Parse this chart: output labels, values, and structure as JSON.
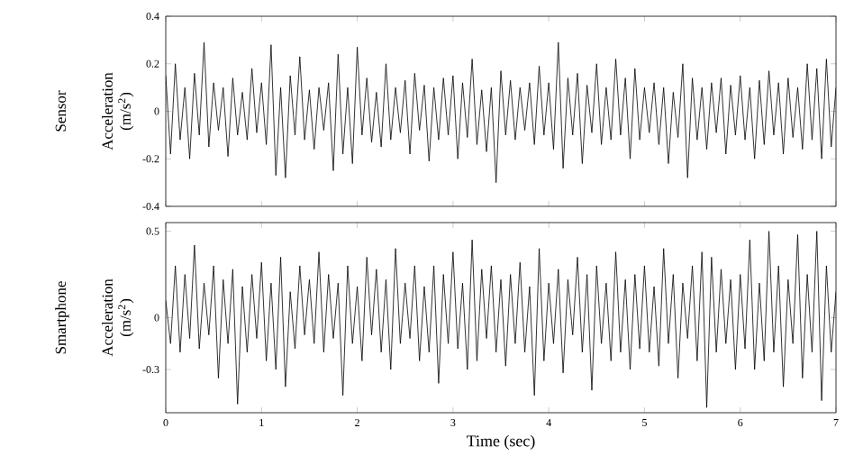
{
  "chart_data": [
    {
      "type": "line",
      "title": "Sensor",
      "ylabel": "Acceleration (m/s$^{2}$)",
      "xlim": [
        0,
        7
      ],
      "xticks": [
        0,
        1,
        2,
        3,
        4,
        5,
        6,
        7
      ],
      "ylim": [
        -0.4,
        0.4
      ],
      "yticks": [
        -0.4,
        -0.2,
        0,
        0.2,
        0.4
      ],
      "tick_labels": "y",
      "x": [
        0,
        0.05,
        0.1,
        0.15,
        0.2,
        0.25,
        0.3,
        0.35,
        0.4,
        0.45,
        0.5,
        0.55,
        0.6,
        0.65,
        0.7,
        0.75,
        0.8,
        0.85,
        0.9,
        0.95,
        1,
        1.05,
        1.1,
        1.15,
        1.2,
        1.25,
        1.3,
        1.35,
        1.4,
        1.45,
        1.5,
        1.55,
        1.6,
        1.65,
        1.7,
        1.75,
        1.8,
        1.85,
        1.9,
        1.95,
        2,
        2.05,
        2.1,
        2.15,
        2.2,
        2.25,
        2.3,
        2.35,
        2.4,
        2.45,
        2.5,
        2.55,
        2.6,
        2.65,
        2.7,
        2.75,
        2.8,
        2.85,
        2.9,
        2.95,
        3,
        3.05,
        3.1,
        3.15,
        3.2,
        3.25,
        3.3,
        3.35,
        3.4,
        3.45,
        3.5,
        3.55,
        3.6,
        3.65,
        3.7,
        3.75,
        3.8,
        3.85,
        3.9,
        3.95,
        4,
        4.05,
        4.1,
        4.15,
        4.2,
        4.25,
        4.3,
        4.35,
        4.4,
        4.45,
        4.5,
        4.55,
        4.6,
        4.65,
        4.7,
        4.75,
        4.8,
        4.85,
        4.9,
        4.95,
        5,
        5.05,
        5.1,
        5.15,
        5.2,
        5.25,
        5.3,
        5.35,
        5.4,
        5.45,
        5.5,
        5.55,
        5.6,
        5.65,
        5.7,
        5.75,
        5.8,
        5.85,
        5.9,
        5.95,
        6,
        6.05,
        6.1,
        6.15,
        6.2,
        6.25,
        6.3,
        6.35,
        6.4,
        6.45,
        6.5,
        6.55,
        6.6,
        6.65,
        6.7,
        6.75,
        6.8,
        6.85,
        6.9,
        6.95,
        7
      ],
      "series": [
        {
          "color": "#000000",
          "values": [
            0.15,
            -0.18,
            0.2,
            -0.12,
            0.1,
            -0.2,
            0.16,
            -0.1,
            0.29,
            -0.15,
            0.12,
            -0.08,
            0.1,
            -0.19,
            0.14,
            -0.1,
            0.08,
            -0.12,
            0.18,
            -0.09,
            0.12,
            -0.14,
            0.28,
            -0.27,
            0.1,
            -0.28,
            0.15,
            -0.1,
            0.23,
            -0.12,
            0.09,
            -0.16,
            0.1,
            -0.08,
            0.12,
            -0.25,
            0.24,
            -0.18,
            0.1,
            -0.22,
            0.27,
            -0.1,
            0.14,
            -0.13,
            0.08,
            -0.15,
            0.2,
            -0.12,
            0.1,
            -0.09,
            0.13,
            -0.18,
            0.16,
            -0.08,
            0.11,
            -0.21,
            0.1,
            -0.12,
            0.14,
            -0.1,
            0.15,
            -0.2,
            0.12,
            -0.11,
            0.22,
            -0.14,
            0.09,
            -0.17,
            0.1,
            -0.3,
            0.17,
            -0.1,
            0.13,
            -0.12,
            0.1,
            -0.08,
            0.12,
            -0.14,
            0.19,
            -0.1,
            0.12,
            -0.16,
            0.29,
            -0.24,
            0.14,
            -0.1,
            0.16,
            -0.22,
            0.11,
            -0.09,
            0.2,
            -0.14,
            0.1,
            -0.12,
            0.22,
            -0.1,
            0.14,
            -0.2,
            0.18,
            -0.12,
            0.1,
            -0.09,
            0.12,
            -0.14,
            0.1,
            -0.22,
            0.08,
            -0.11,
            0.2,
            -0.28,
            0.14,
            -0.12,
            0.1,
            -0.16,
            0.12,
            -0.09,
            0.14,
            -0.18,
            0.11,
            -0.1,
            0.15,
            -0.12,
            0.1,
            -0.2,
            0.13,
            -0.14,
            0.17,
            -0.1,
            0.12,
            -0.18,
            0.14,
            -0.11,
            0.1,
            -0.16,
            0.2,
            -0.12,
            0.18,
            -0.2,
            0.22,
            -0.15,
            0.1
          ]
        }
      ]
    },
    {
      "type": "line",
      "title": "Smartphone",
      "ylabel": "Acceleration (m/s$^{2}$)",
      "xlabel": "Time (sec)",
      "xlim": [
        0,
        7
      ],
      "xticks": [
        0,
        1,
        2,
        3,
        4,
        5,
        6,
        7
      ],
      "ylim": [
        -0.55,
        0.55
      ],
      "yticks": [
        -0.3,
        0,
        0.5
      ],
      "x": [
        0,
        0.05,
        0.1,
        0.15,
        0.2,
        0.25,
        0.3,
        0.35,
        0.4,
        0.45,
        0.5,
        0.55,
        0.6,
        0.65,
        0.7,
        0.75,
        0.8,
        0.85,
        0.9,
        0.95,
        1,
        1.05,
        1.1,
        1.15,
        1.2,
        1.25,
        1.3,
        1.35,
        1.4,
        1.45,
        1.5,
        1.55,
        1.6,
        1.65,
        1.7,
        1.75,
        1.8,
        1.85,
        1.9,
        1.95,
        2,
        2.05,
        2.1,
        2.15,
        2.2,
        2.25,
        2.3,
        2.35,
        2.4,
        2.45,
        2.5,
        2.55,
        2.6,
        2.65,
        2.7,
        2.75,
        2.8,
        2.85,
        2.9,
        2.95,
        3,
        3.05,
        3.1,
        3.15,
        3.2,
        3.25,
        3.3,
        3.35,
        3.4,
        3.45,
        3.5,
        3.55,
        3.6,
        3.65,
        3.7,
        3.75,
        3.8,
        3.85,
        3.9,
        3.95,
        4,
        4.05,
        4.1,
        4.15,
        4.2,
        4.25,
        4.3,
        4.35,
        4.4,
        4.45,
        4.5,
        4.55,
        4.6,
        4.65,
        4.7,
        4.75,
        4.8,
        4.85,
        4.9,
        4.95,
        5,
        5.05,
        5.1,
        5.15,
        5.2,
        5.25,
        5.3,
        5.35,
        5.4,
        5.45,
        5.5,
        5.55,
        5.6,
        5.65,
        5.7,
        5.75,
        5.8,
        5.85,
        5.9,
        5.95,
        6,
        6.05,
        6.1,
        6.15,
        6.2,
        6.25,
        6.3,
        6.35,
        6.4,
        6.45,
        6.5,
        6.55,
        6.6,
        6.65,
        6.7,
        6.75,
        6.8,
        6.85,
        6.9,
        6.95,
        7
      ],
      "series": [
        {
          "color": "#000000",
          "values": [
            0.1,
            -0.15,
            0.3,
            -0.2,
            0.25,
            -0.12,
            0.42,
            -0.18,
            0.2,
            -0.1,
            0.3,
            -0.35,
            0.22,
            -0.15,
            0.28,
            -0.5,
            0.18,
            -0.2,
            0.25,
            -0.12,
            0.32,
            -0.25,
            0.2,
            -0.3,
            0.35,
            -0.4,
            0.15,
            -0.18,
            0.3,
            -0.1,
            0.22,
            -0.15,
            0.38,
            -0.2,
            0.25,
            -0.12,
            0.2,
            -0.45,
            0.3,
            -0.15,
            0.18,
            -0.25,
            0.35,
            -0.1,
            0.28,
            -0.2,
            0.22,
            -0.3,
            0.4,
            -0.15,
            0.2,
            -0.12,
            0.3,
            -0.25,
            0.18,
            -0.2,
            0.3,
            -0.38,
            0.25,
            -0.15,
            0.38,
            -0.18,
            0.2,
            -0.3,
            0.45,
            -0.25,
            0.28,
            -0.12,
            0.3,
            -0.2,
            0.22,
            -0.28,
            0.25,
            -0.15,
            0.32,
            -0.2,
            0.18,
            -0.45,
            0.4,
            -0.25,
            0.2,
            -0.15,
            0.28,
            -0.32,
            0.22,
            -0.1,
            0.35,
            -0.2,
            0.25,
            -0.42,
            0.3,
            -0.15,
            0.2,
            -0.25,
            0.38,
            -0.2,
            0.22,
            -0.3,
            0.25,
            -0.18,
            0.3,
            -0.2,
            0.18,
            -0.28,
            0.4,
            -0.15,
            0.25,
            -0.35,
            0.2,
            -0.12,
            0.3,
            -0.25,
            0.38,
            -0.52,
            0.35,
            -0.2,
            0.28,
            -0.15,
            0.22,
            -0.3,
            0.25,
            -0.18,
            0.45,
            -0.3,
            0.2,
            -0.25,
            0.5,
            -0.2,
            0.3,
            -0.4,
            0.22,
            -0.15,
            0.48,
            -0.35,
            0.25,
            -0.2,
            0.5,
            -0.48,
            0.3,
            -0.2,
            0.15
          ]
        }
      ]
    }
  ]
}
